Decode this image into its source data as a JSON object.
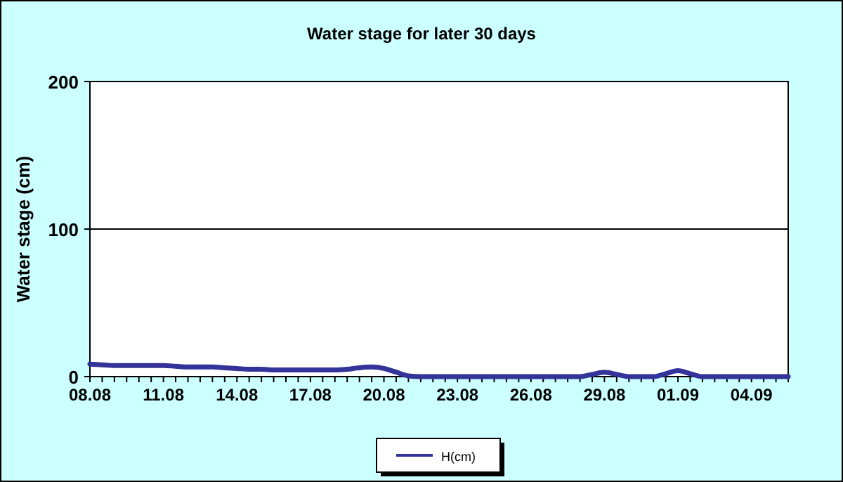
{
  "chart_data": {
    "type": "line",
    "title": "Water stage for later 30 days",
    "ylabel": "Water stage (cm)",
    "categories": [
      "08.08",
      null,
      null,
      null,
      null,
      null,
      "11.08",
      null,
      null,
      null,
      null,
      null,
      "14.08",
      null,
      null,
      null,
      null,
      null,
      "17.08",
      null,
      null,
      null,
      null,
      null,
      "20.08",
      null,
      null,
      null,
      null,
      null,
      "23.08",
      null,
      null,
      null,
      null,
      null,
      "26.08",
      null,
      null,
      null,
      null,
      null,
      "29.08",
      null,
      null,
      null,
      null,
      null,
      "01.09",
      null,
      null,
      null,
      null,
      null,
      "04.09",
      null,
      null,
      null
    ],
    "series": [
      {
        "name": "H(cm)",
        "color": "#333399",
        "values": [
          8.5,
          8,
          7.5,
          7.5,
          7.5,
          7.5,
          7.5,
          7,
          6.5,
          6.5,
          6.5,
          6,
          5.5,
          5,
          5,
          4.5,
          4.5,
          4.5,
          4.5,
          4.5,
          4.5,
          5,
          6,
          6.5,
          5.5,
          3,
          0.5,
          0,
          0,
          0,
          0,
          0,
          0,
          0,
          0,
          0,
          0,
          0,
          0,
          0,
          0,
          1.5,
          3,
          1.5,
          0,
          0,
          0,
          2,
          4,
          2,
          0,
          0,
          0,
          0,
          0,
          0,
          0,
          0
        ]
      }
    ],
    "ylim": [
      0,
      200
    ],
    "yticks": [
      0,
      100,
      200
    ],
    "grid": "y",
    "legend": "bottom"
  }
}
